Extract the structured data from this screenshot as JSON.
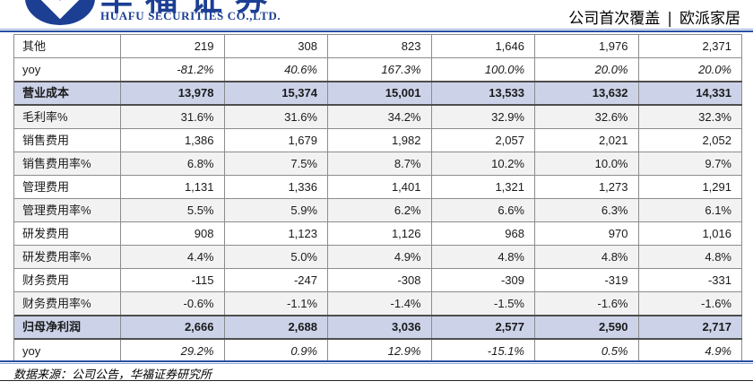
{
  "header": {
    "logo_cn": "华福证券",
    "logo_en": "HUAFU SECURITIES CO.,LTD.",
    "report_tag": "公司首次覆盖",
    "separator": "|",
    "company": "欧派家居"
  },
  "colors": {
    "brand_blue": "#1c3f94",
    "rule_blue": "#2a4fa2",
    "rule_blue_light": "#8fa9d8",
    "highlight_row": "#ccd3e9",
    "shaded_row": "#f2f2f2",
    "grid_line": "#8c8c8c"
  },
  "table": {
    "rows": [
      {
        "label": "其他",
        "style": "normal",
        "values": [
          "219",
          "308",
          "823",
          "1,646",
          "1,976",
          "2,371"
        ]
      },
      {
        "label": "yoy",
        "style": "italic",
        "values": [
          "-81.2%",
          "40.6%",
          "167.3%",
          "100.0%",
          "20.0%",
          "20.0%"
        ]
      },
      {
        "label": "营业成本",
        "style": "bold",
        "values": [
          "13,978",
          "15,374",
          "15,001",
          "13,533",
          "13,632",
          "14,331"
        ]
      },
      {
        "label": "毛利率%",
        "style": "shaded",
        "values": [
          "31.6%",
          "31.6%",
          "34.2%",
          "32.9%",
          "32.6%",
          "32.3%"
        ]
      },
      {
        "label": "销售费用",
        "style": "normal",
        "values": [
          "1,386",
          "1,679",
          "1,982",
          "2,057",
          "2,021",
          "2,052"
        ]
      },
      {
        "label": "销售费用率%",
        "style": "shaded",
        "values": [
          "6.8%",
          "7.5%",
          "8.7%",
          "10.2%",
          "10.0%",
          "9.7%"
        ]
      },
      {
        "label": "管理费用",
        "style": "normal",
        "values": [
          "1,131",
          "1,336",
          "1,401",
          "1,321",
          "1,273",
          "1,291"
        ]
      },
      {
        "label": "管理费用率%",
        "style": "shaded",
        "values": [
          "5.5%",
          "5.9%",
          "6.2%",
          "6.6%",
          "6.3%",
          "6.1%"
        ]
      },
      {
        "label": "研发费用",
        "style": "normal",
        "values": [
          "908",
          "1,123",
          "1,126",
          "968",
          "970",
          "1,016"
        ]
      },
      {
        "label": "研发费用率%",
        "style": "shaded",
        "values": [
          "4.4%",
          "5.0%",
          "4.9%",
          "4.8%",
          "4.8%",
          "4.8%"
        ]
      },
      {
        "label": "财务费用",
        "style": "normal",
        "values": [
          "-115",
          "-247",
          "-308",
          "-309",
          "-319",
          "-331"
        ]
      },
      {
        "label": "财务费用率%",
        "style": "shaded",
        "values": [
          "-0.6%",
          "-1.1%",
          "-1.4%",
          "-1.5%",
          "-1.6%",
          "-1.6%"
        ]
      },
      {
        "label": "归母净利润",
        "style": "bold",
        "values": [
          "2,666",
          "2,688",
          "3,036",
          "2,577",
          "2,590",
          "2,717"
        ]
      },
      {
        "label": "yoy",
        "style": "italic",
        "values": [
          "29.2%",
          "0.9%",
          "12.9%",
          "-15.1%",
          "0.5%",
          "4.9%"
        ]
      }
    ]
  },
  "footer": {
    "source": "数据来源：公司公告，华福证券研究所"
  }
}
